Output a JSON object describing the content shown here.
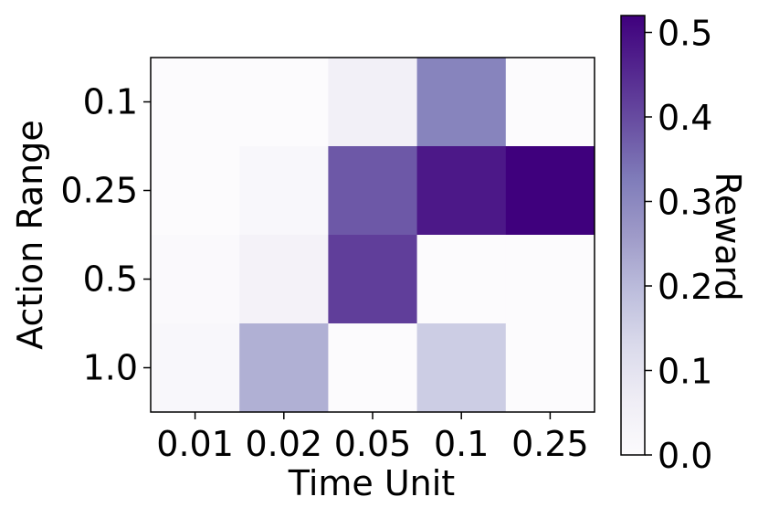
{
  "chart_data": {
    "type": "heatmap",
    "xlabel": "Time Unit",
    "ylabel": "Action Range",
    "x_categories": [
      "0.01",
      "0.02",
      "0.05",
      "0.1",
      "0.25"
    ],
    "y_categories": [
      "0.1",
      "0.25",
      "0.5",
      "1.0"
    ],
    "values": [
      [
        0.0,
        0.0,
        0.05,
        0.31,
        0.0
      ],
      [
        0.0,
        0.02,
        0.38,
        0.48,
        0.52
      ],
      [
        0.01,
        0.04,
        0.42,
        0.0,
        0.0
      ],
      [
        0.02,
        0.22,
        0.0,
        0.16,
        0.0
      ]
    ],
    "colorbar": {
      "label": "Reward",
      "range": [
        0,
        0.52
      ],
      "ticks": [
        "0.0",
        "0.1",
        "0.2",
        "0.3",
        "0.4",
        "0.5"
      ],
      "colormap": "Purples"
    }
  }
}
